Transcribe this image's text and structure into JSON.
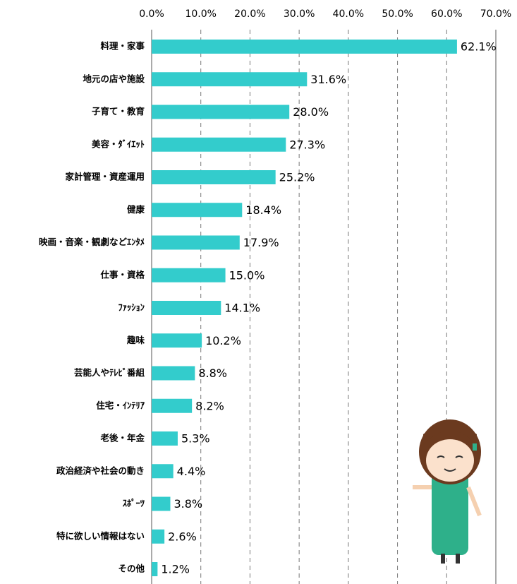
{
  "chart_data": {
    "type": "barh",
    "categories": [
      "料理・家事",
      "地元の店や施設",
      "子育て・教育",
      "美容・ﾀﾞｲｴｯﾄ",
      "家計管理・資産運用",
      "健康",
      "映画・音楽・観劇などｴﾝﾀﾒ",
      "仕事・資格",
      "ﾌｧｯｼｮﾝ",
      "趣味",
      "芸能人やﾃﾚﾋﾞ番組",
      "住宅・ｲﾝﾃﾘｱ",
      "老後・年金",
      "政治経済や社会の動き",
      "ｽﾎﾟｰﾂ",
      "特に欲しい情報はない",
      "その他"
    ],
    "values": [
      62.1,
      31.6,
      28.0,
      27.3,
      25.2,
      18.4,
      17.9,
      15.0,
      14.1,
      10.2,
      8.8,
      8.2,
      5.3,
      4.4,
      3.8,
      2.6,
      1.2
    ],
    "value_labels": [
      "62.1%",
      "31.6%",
      "28.0%",
      "27.3%",
      "25.2%",
      "18.4%",
      "17.9%",
      "15.0%",
      "14.1%",
      "10.2%",
      "8.8%",
      "8.2%",
      "5.3%",
      "4.4%",
      "3.8%",
      "2.6%",
      "1.2%"
    ],
    "color": "#33cccc",
    "xlim": [
      0,
      70
    ],
    "xticks": [
      {
        "value": 0,
        "label": "0.0%"
      },
      {
        "value": 10,
        "label": "10.0%"
      },
      {
        "value": 20,
        "label": "20.0%"
      },
      {
        "value": 30,
        "label": "30.0%"
      },
      {
        "value": 40,
        "label": "40.0%"
      },
      {
        "value": 50,
        "label": "50.0%"
      },
      {
        "value": 60,
        "label": "60.0%"
      },
      {
        "value": 70,
        "label": "70.0%"
      }
    ],
    "grid": true
  }
}
